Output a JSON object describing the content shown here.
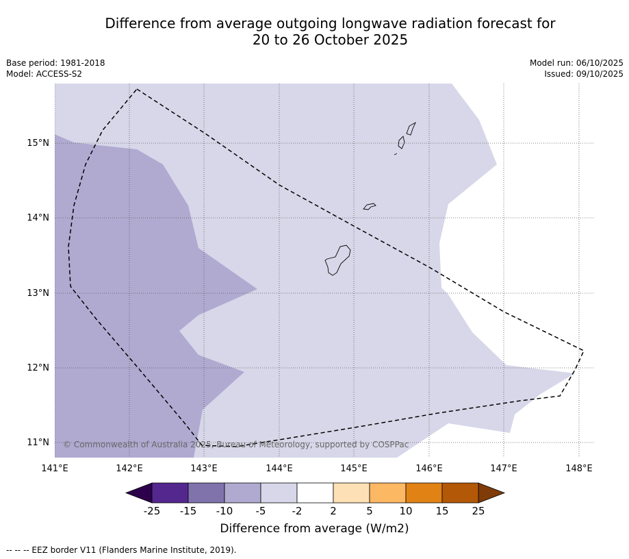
{
  "header": {
    "title_line1": "Difference from average outgoing longwave radiation forecast for",
    "title_line2": "20 to 26 October 2025"
  },
  "meta": {
    "base_period": "Base period: 1981-2018",
    "model": "Model: ACCESS-S2",
    "model_run": "Model run: 06/10/2025",
    "issued": "Issued: 09/10/2025"
  },
  "map": {
    "copyright": "© Commonwealth of Australia 2025, Bureau of Meteorology, supported by COSPPac",
    "lat_labels": [
      "15°N",
      "14°N",
      "13°N",
      "12°N",
      "11°N"
    ],
    "lon_labels": [
      "141°E",
      "142°E",
      "143°E",
      "144°E",
      "145°E",
      "146°E",
      "147°E",
      "148°E"
    ],
    "colors": {
      "range_neg10_neg5": "#b0aad1",
      "range_neg5_neg2": "#d7d7e9",
      "range_neg2_2": "#ffffff",
      "grid": "#555555"
    }
  },
  "colorbar": {
    "label": "Difference from average (W/m2)",
    "ticks": [
      "-25",
      "-15",
      "-10",
      "-5",
      "-2",
      "2",
      "5",
      "10",
      "15",
      "25"
    ],
    "colors": [
      "#54278f",
      "#8073ac",
      "#b0aad1",
      "#d7d7e9",
      "#ffffff",
      "#fee0b6",
      "#fdb863",
      "#e08214",
      "#b35806"
    ],
    "low_extend": "#2d004b",
    "high_extend": "#7f3b08"
  },
  "footnote": "--  --  -- EEZ border V11 (Flanders Marine Institute, 2019)."
}
